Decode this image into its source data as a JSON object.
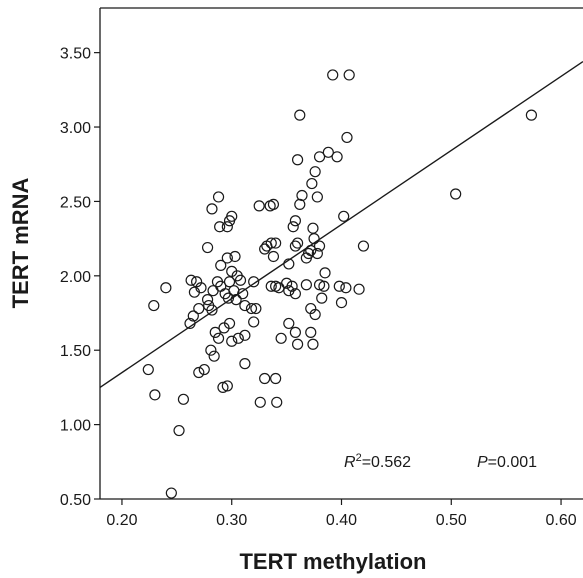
{
  "chart_data": {
    "type": "scatter",
    "xlabel": "TERT methylation",
    "ylabel": "TERT mRNA",
    "xlim": [
      0.18,
      0.62
    ],
    "ylim": [
      0.5,
      3.8
    ],
    "x_ticks": [
      0.2,
      0.3,
      0.4,
      0.5,
      0.6
    ],
    "x_tick_labels": [
      "0.20",
      "0.30",
      "0.40",
      "0.50",
      "0.60"
    ],
    "y_ticks": [
      0.5,
      1.0,
      1.5,
      2.0,
      2.5,
      3.0,
      3.5
    ],
    "y_tick_labels": [
      "0.50",
      "1.00",
      "1.50",
      "2.00",
      "2.50",
      "3.00",
      "3.50"
    ],
    "grid": false,
    "fit_line": {
      "x": [
        0.18,
        0.62
      ],
      "y": [
        1.25,
        3.44
      ]
    },
    "annotations": {
      "r2_symbol": "R",
      "r2_sup": "2",
      "r2_value": "=0.562",
      "p_symbol": "P",
      "p_value": "=0.001"
    },
    "points": [
      [
        0.245,
        0.54
      ],
      [
        0.252,
        0.96
      ],
      [
        0.256,
        1.17
      ],
      [
        0.224,
        1.37
      ],
      [
        0.23,
        1.2
      ],
      [
        0.229,
        1.8
      ],
      [
        0.24,
        1.92
      ],
      [
        0.27,
        1.35
      ],
      [
        0.275,
        1.37
      ],
      [
        0.281,
        1.5
      ],
      [
        0.284,
        1.46
      ],
      [
        0.288,
        1.58
      ],
      [
        0.292,
        1.25
      ],
      [
        0.296,
        1.26
      ],
      [
        0.3,
        1.56
      ],
      [
        0.298,
        1.68
      ],
      [
        0.293,
        1.65
      ],
      [
        0.285,
        1.62
      ],
      [
        0.279,
        1.8
      ],
      [
        0.282,
        1.77
      ],
      [
        0.262,
        1.68
      ],
      [
        0.265,
        1.73
      ],
      [
        0.27,
        1.78
      ],
      [
        0.278,
        1.84
      ],
      [
        0.272,
        1.92
      ],
      [
        0.268,
        1.96
      ],
      [
        0.263,
        1.97
      ],
      [
        0.266,
        1.89
      ],
      [
        0.283,
        1.9
      ],
      [
        0.287,
        1.96
      ],
      [
        0.29,
        1.93
      ],
      [
        0.294,
        1.88
      ],
      [
        0.298,
        1.96
      ],
      [
        0.302,
        1.9
      ],
      [
        0.297,
        1.85
      ],
      [
        0.304,
        1.84
      ],
      [
        0.308,
        1.97
      ],
      [
        0.31,
        1.88
      ],
      [
        0.312,
        1.8
      ],
      [
        0.318,
        1.78
      ],
      [
        0.322,
        1.78
      ],
      [
        0.32,
        1.96
      ],
      [
        0.305,
        2.0
      ],
      [
        0.3,
        2.03
      ],
      [
        0.296,
        2.12
      ],
      [
        0.29,
        2.07
      ],
      [
        0.278,
        2.19
      ],
      [
        0.282,
        2.45
      ],
      [
        0.288,
        2.53
      ],
      [
        0.289,
        2.33
      ],
      [
        0.296,
        2.33
      ],
      [
        0.298,
        2.37
      ],
      [
        0.3,
        2.4
      ],
      [
        0.303,
        2.13
      ],
      [
        0.306,
        1.58
      ],
      [
        0.312,
        1.6
      ],
      [
        0.312,
        1.41
      ],
      [
        0.32,
        1.69
      ],
      [
        0.326,
        1.15
      ],
      [
        0.33,
        1.31
      ],
      [
        0.34,
        1.31
      ],
      [
        0.341,
        1.15
      ],
      [
        0.345,
        1.58
      ],
      [
        0.352,
        1.68
      ],
      [
        0.358,
        1.62
      ],
      [
        0.36,
        1.54
      ],
      [
        0.336,
        1.93
      ],
      [
        0.34,
        1.93
      ],
      [
        0.343,
        1.92
      ],
      [
        0.338,
        2.13
      ],
      [
        0.332,
        2.2
      ],
      [
        0.33,
        2.18
      ],
      [
        0.336,
        2.22
      ],
      [
        0.34,
        2.22
      ],
      [
        0.335,
        2.47
      ],
      [
        0.338,
        2.48
      ],
      [
        0.325,
        2.47
      ],
      [
        0.35,
        1.95
      ],
      [
        0.352,
        1.9
      ],
      [
        0.355,
        1.93
      ],
      [
        0.358,
        1.88
      ],
      [
        0.352,
        2.08
      ],
      [
        0.356,
        2.33
      ],
      [
        0.358,
        2.37
      ],
      [
        0.358,
        2.2
      ],
      [
        0.36,
        2.22
      ],
      [
        0.362,
        2.48
      ],
      [
        0.364,
        2.54
      ],
      [
        0.36,
        2.78
      ],
      [
        0.362,
        3.08
      ],
      [
        0.368,
        2.12
      ],
      [
        0.37,
        2.15
      ],
      [
        0.372,
        2.17
      ],
      [
        0.374,
        2.32
      ],
      [
        0.375,
        2.25
      ],
      [
        0.373,
        2.62
      ],
      [
        0.376,
        2.7
      ],
      [
        0.378,
        2.53
      ],
      [
        0.38,
        2.8
      ],
      [
        0.368,
        1.94
      ],
      [
        0.372,
        1.78
      ],
      [
        0.376,
        1.74
      ],
      [
        0.372,
        1.62
      ],
      [
        0.374,
        1.54
      ],
      [
        0.38,
        1.94
      ],
      [
        0.382,
        1.85
      ],
      [
        0.385,
        2.02
      ],
      [
        0.378,
        2.15
      ],
      [
        0.38,
        2.2
      ],
      [
        0.384,
        1.93
      ],
      [
        0.388,
        2.83
      ],
      [
        0.392,
        3.35
      ],
      [
        0.396,
        2.8
      ],
      [
        0.398,
        1.93
      ],
      [
        0.4,
        1.82
      ],
      [
        0.402,
        2.4
      ],
      [
        0.404,
        1.92
      ],
      [
        0.405,
        2.93
      ],
      [
        0.407,
        3.35
      ],
      [
        0.416,
        1.91
      ],
      [
        0.42,
        2.2
      ],
      [
        0.504,
        2.55
      ],
      [
        0.573,
        3.08
      ]
    ]
  }
}
